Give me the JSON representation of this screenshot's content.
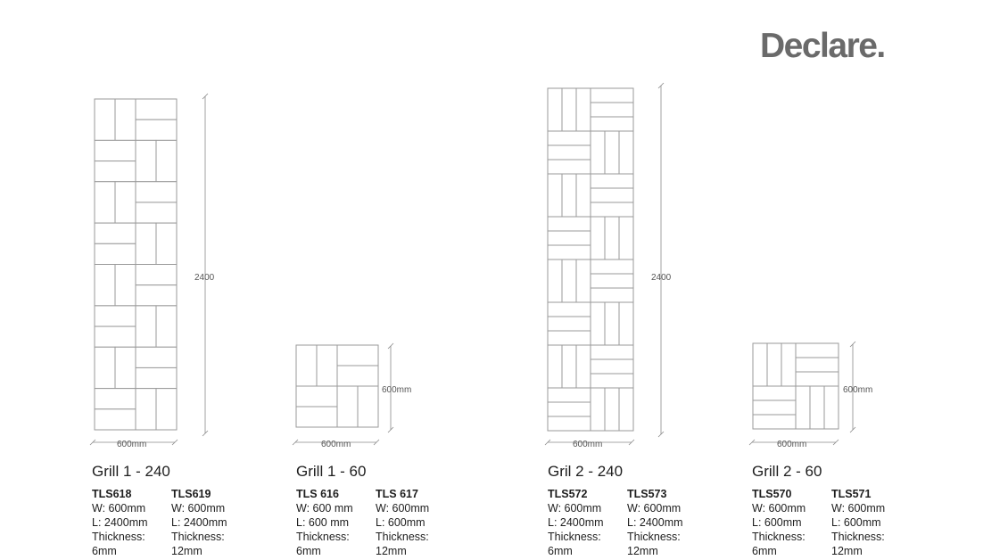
{
  "brand": {
    "logo_text": "Declare."
  },
  "dimensions": {
    "height_tall": "2400",
    "width_600": "600mm",
    "height_600": "600mm"
  },
  "products": [
    {
      "title": "Grill 1 - 240",
      "variants": [
        {
          "code": "TLS618",
          "w": "W: 600mm",
          "l": "L: 2400mm",
          "t_label": "Thickness:",
          "t_value": "6mm"
        },
        {
          "code": "TLS619",
          "w": "W: 600mm",
          "l": "L: 2400mm",
          "t_label": "Thickness:",
          "t_value": "12mm"
        }
      ]
    },
    {
      "title": "Grill 1 - 60",
      "variants": [
        {
          "code": "TLS 616",
          "w": "W: 600 mm",
          "l": "L: 600 mm",
          "t_label": "Thickness:",
          "t_value": "6mm"
        },
        {
          "code": "TLS 617",
          "w": "W: 600mm",
          "l": "L: 600mm",
          "t_label": "Thickness:",
          "t_value": "12mm"
        }
      ]
    },
    {
      "title": "Gril 2 - 240",
      "variants": [
        {
          "code": "TLS572",
          "w": "W: 600mm",
          "l": "L: 2400mm",
          "t_label": "Thickness:",
          "t_value": "6mm"
        },
        {
          "code": "TLS573",
          "w": "W: 600mm",
          "l": "L: 2400mm",
          "t_label": "Thickness:",
          "t_value": "12mm"
        }
      ]
    },
    {
      "title": "Grill 2 - 60",
      "variants": [
        {
          "code": "TLS570",
          "w": "W: 600mm",
          "l": "L: 600mm",
          "t_label": "Thickness:",
          "t_value": "6mm"
        },
        {
          "code": "TLS571",
          "w": "W: 600mm",
          "l": "L: 600mm",
          "t_label": "Thickness:",
          "t_value": "12mm"
        }
      ]
    }
  ]
}
